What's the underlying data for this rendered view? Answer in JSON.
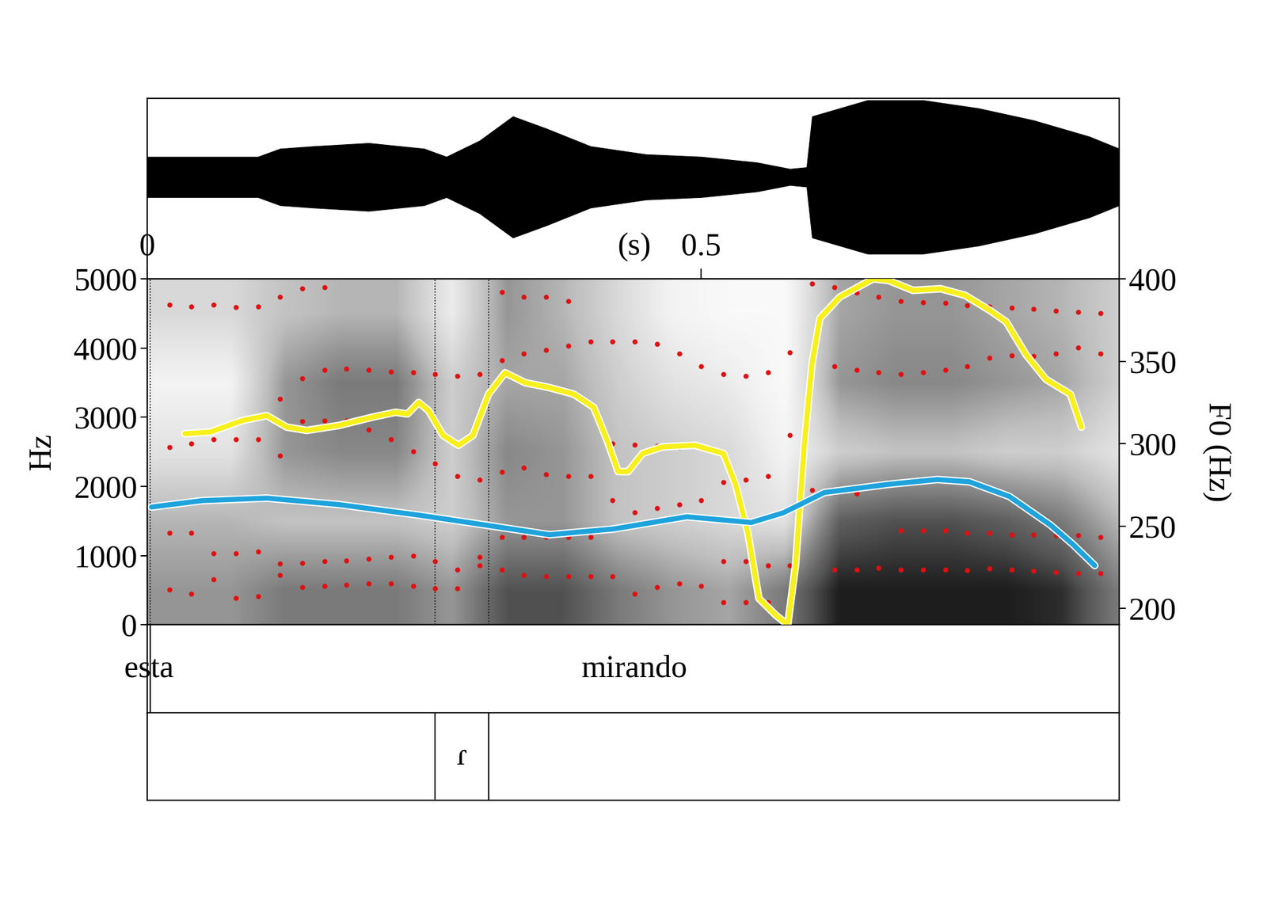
{
  "chart_data": {
    "type": "praat",
    "xlim": [
      0,
      0.877
    ],
    "xticks": [
      0,
      0.5
    ],
    "xlabel": "(s)",
    "waveform": {
      "type": "area",
      "color": "#000000",
      "ylim": [
        -126,
        97
      ],
      "x": [
        0,
        0.05,
        0.1,
        0.12,
        0.15,
        0.2,
        0.25,
        0.27,
        0.3,
        0.33,
        0.36,
        0.4,
        0.45,
        0.5,
        0.55,
        0.58,
        0.595,
        0.6,
        0.65,
        0.7,
        0.75,
        0.8,
        0.85,
        0.877
      ],
      "values": [
        25,
        25,
        25,
        35,
        38,
        42,
        35,
        25,
        45,
        75,
        60,
        38,
        28,
        25,
        18,
        10,
        12,
        75,
        95,
        95,
        85,
        70,
        50,
        35
      ]
    },
    "spectrogram": {
      "ylim": [
        0,
        5000
      ],
      "yticks": [
        0,
        1000,
        2000,
        3000,
        4000,
        5000
      ],
      "ylabel": "Hz",
      "y2lim": [
        190,
        400
      ],
      "y2ticks": [
        200,
        250,
        300,
        350,
        400
      ],
      "y2label": "F0 (Hz)",
      "image": {
        "times": [
          0.025,
          0.075,
          0.125,
          0.175,
          0.225,
          0.275,
          0.325,
          0.375,
          0.425,
          0.475,
          0.525,
          0.575,
          0.625,
          0.675,
          0.725,
          0.775,
          0.825,
          0.875
        ],
        "freqs": [
          500,
          1500,
          2500,
          3500,
          4500
        ],
        "range": [
          0,
          1
        ],
        "cells": [
          [
            0.5,
            0.5,
            0.6,
            0.6,
            0.6,
            0.5,
            0.75,
            0.75,
            0.6,
            0.5,
            0.45,
            0.6,
            0.9,
            0.9,
            0.9,
            0.9,
            0.85,
            0.6
          ],
          [
            0.4,
            0.4,
            0.35,
            0.35,
            0.35,
            0.3,
            0.5,
            0.5,
            0.35,
            0.3,
            0.25,
            0.2,
            0.7,
            0.75,
            0.75,
            0.7,
            0.6,
            0.4
          ],
          [
            0.2,
            0.2,
            0.5,
            0.55,
            0.55,
            0.3,
            0.55,
            0.5,
            0.35,
            0.3,
            0.25,
            0.1,
            0.3,
            0.35,
            0.35,
            0.3,
            0.3,
            0.2
          ],
          [
            0.1,
            0.1,
            0.5,
            0.6,
            0.6,
            0.3,
            0.45,
            0.45,
            0.3,
            0.2,
            0.15,
            0.05,
            0.5,
            0.55,
            0.55,
            0.5,
            0.45,
            0.3
          ],
          [
            0.25,
            0.25,
            0.35,
            0.4,
            0.4,
            0.15,
            0.5,
            0.4,
            0.25,
            0.1,
            0.05,
            0.05,
            0.45,
            0.5,
            0.5,
            0.45,
            0.4,
            0.3
          ]
        ]
      },
      "formants": {
        "type": "scatter",
        "color": "#e01010",
        "marker": "circle",
        "x": [
          0.02,
          0.04,
          0.06,
          0.08,
          0.1,
          0.12,
          0.14,
          0.16,
          0.18,
          0.2,
          0.22,
          0.24,
          0.26,
          0.28,
          0.3,
          0.32,
          0.34,
          0.36,
          0.38,
          0.4,
          0.42,
          0.44,
          0.46,
          0.48,
          0.5,
          0.52,
          0.54,
          0.56,
          0.58,
          0.6,
          0.62,
          0.64,
          0.66,
          0.68,
          0.7,
          0.72,
          0.74,
          0.76,
          0.78,
          0.8,
          0.82,
          0.84,
          0.86
        ],
        "tracks": [
          [
            505,
            447,
            659,
            388,
            412,
            717,
            541,
            564,
            576,
            600,
            600,
            564,
            529,
            529,
            858,
            800,
            717,
            705,
            705,
            705,
            705,
            447,
            541,
            600,
            564,
            329,
            329,
            329,
            329,
            null,
            800,
            800,
            823,
            800,
            800,
            800,
            788,
            811,
            800,
            776,
            764,
            741,
            741
          ],
          [
            1329,
            1329,
            1035,
            1035,
            1058,
            882,
            894,
            917,
            929,
            953,
            976,
            1000,
            917,
            800,
            976,
            1270,
            1270,
            1270,
            1270,
            1270,
            1799,
            1623,
            1682,
            1741,
            1799,
            917,
            917,
            858,
            858,
            1952,
            1917,
            1893,
            null,
            1364,
            1364,
            1364,
            1329,
            1329,
            1305,
            1305,
            1294,
            1294,
            1270
          ],
          [
            2564,
            2622,
            2681,
            2681,
            2681,
            2446,
            2940,
            2952,
            2952,
            2822,
            2681,
            2505,
            2328,
            2152,
            2093,
            2211,
            2270,
            2176,
            2152,
            2152,
            2622,
            2599,
            2587,
            2564,
            2564,
            2058,
            2093,
            2152,
            2740,
            null,
            null,
            null,
            null,
            null,
            null,
            null,
            null,
            null,
            null,
            null,
            null,
            null,
            null
          ],
          [
            null,
            null,
            null,
            null,
            null,
            3269,
            3563,
            3681,
            3705,
            3681,
            3658,
            3646,
            3622,
            3599,
            3622,
            3822,
            3916,
            3975,
            4034,
            4093,
            4093,
            4093,
            4057,
            3916,
            3740,
            3622,
            3599,
            3646,
            3940,
            3740,
            3740,
            3681,
            3646,
            3622,
            3646,
            3681,
            3740,
            3857,
            3893,
            3881,
            3916,
            4010,
            3916
          ],
          [
            4622,
            4598,
            4622,
            4587,
            4598,
            4739,
            4857,
            4880,
            null,
            null,
            null,
            null,
            null,
            null,
            null,
            4810,
            4740,
            4740,
            4680,
            null,
            null,
            null,
            null,
            null,
            null,
            null,
            null,
            null,
            null,
            4930,
            4880,
            4800,
            4740,
            4680,
            4660,
            4650,
            4620,
            4600,
            4580,
            4560,
            4540,
            4520,
            4500
          ]
        ]
      },
      "series": [
        {
          "type": "line",
          "axis": "y2",
          "color": "#f7f01c",
          "line_style": "solid",
          "x": [
            0.034,
            0.057,
            0.086,
            0.108,
            0.126,
            0.144,
            0.173,
            0.203,
            0.224,
            0.235,
            0.245,
            0.254,
            0.267,
            0.281,
            0.294,
            0.308,
            0.323,
            0.341,
            0.363,
            0.385,
            0.403,
            0.415,
            0.425,
            0.434,
            0.447,
            0.465,
            0.494,
            0.52,
            0.531,
            0.542,
            0.552,
            0.567,
            0.578,
            0.585,
            0.593,
            0.6,
            0.607,
            0.625,
            0.655,
            0.669,
            0.691,
            0.716,
            0.738,
            0.76,
            0.775,
            0.793,
            0.811,
            0.833,
            0.843
          ],
          "values": [
            306,
            307,
            314,
            317,
            310,
            308,
            311,
            316,
            319,
            318,
            325,
            320,
            305,
            299,
            305,
            330,
            343,
            337,
            334,
            330,
            322,
            302,
            283,
            283,
            294,
            298,
            299,
            294,
            275,
            246,
            206,
            196,
            190,
            226,
            300,
            349,
            376,
            389,
            400,
            399,
            393,
            394,
            390,
            381,
            374,
            354,
            339,
            330,
            310
          ]
        },
        {
          "type": "line",
          "axis": "y2",
          "color": "#1fa3dc",
          "line_style": "solid",
          "x": [
            0.004,
            0.05,
            0.108,
            0.173,
            0.246,
            0.305,
            0.363,
            0.421,
            0.487,
            0.545,
            0.574,
            0.611,
            0.669,
            0.713,
            0.742,
            0.778,
            0.815,
            0.835,
            0.855
          ],
          "values": [
            261.5,
            265.4,
            266.9,
            263,
            256.5,
            250.6,
            244.7,
            248.2,
            255.6,
            252.1,
            258,
            270.3,
            275.3,
            278.2,
            276.8,
            267.9,
            250.6,
            239,
            226
          ]
        }
      ]
    },
    "tiers": [
      {
        "intervals": [
          {
            "start": 0,
            "end": 0.003,
            "text": "esta"
          },
          {
            "start": 0.003,
            "end": 0.877,
            "text": "mirando"
          }
        ]
      },
      {
        "intervals": [
          {
            "start": 0.2595,
            "end": 0.3083,
            "text": "ɾ"
          }
        ]
      }
    ]
  }
}
